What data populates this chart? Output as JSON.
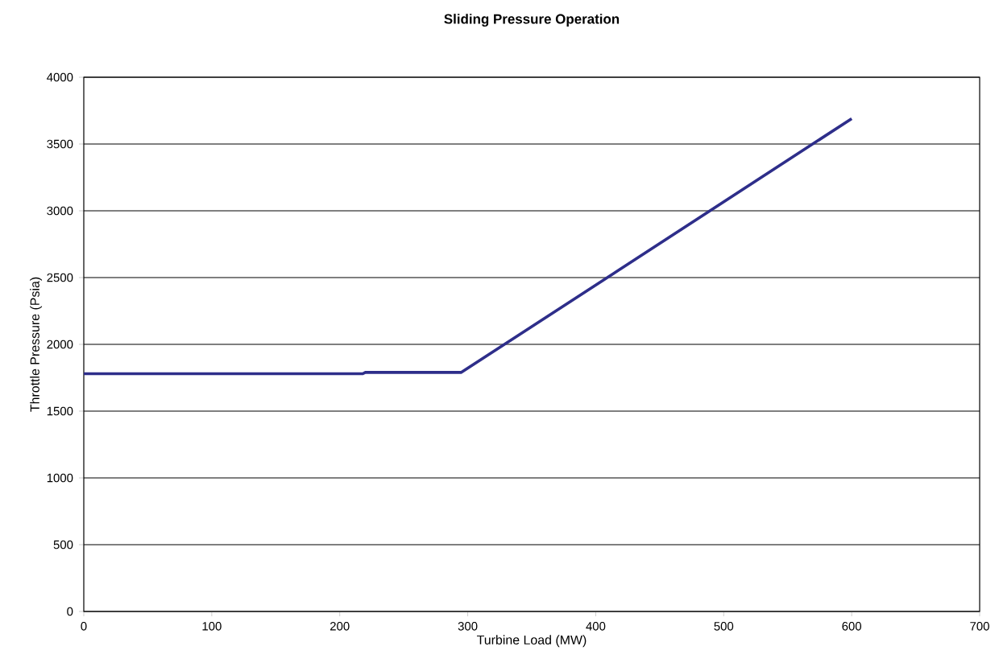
{
  "chart_data": {
    "type": "line",
    "title": "Sliding Pressure Operation",
    "xlabel": "Turbine Load (MW)",
    "ylabel": "Throttle Pressure (Psia)",
    "xlim": [
      0,
      700
    ],
    "xticks": [
      0,
      100,
      200,
      300,
      400,
      500,
      600,
      700
    ],
    "ylim": [
      0,
      4000
    ],
    "yticks": [
      0,
      500,
      1000,
      1500,
      2000,
      2500,
      3000,
      3500,
      4000
    ],
    "grid": "y",
    "legend": false,
    "marker": "none",
    "line_style": "solid",
    "series": [
      {
        "color": "#2e2e8a",
        "x": [
          0,
          218,
          220,
          295,
          600
        ],
        "values": [
          1780,
          1780,
          1790,
          1790,
          3690
        ]
      }
    ]
  }
}
